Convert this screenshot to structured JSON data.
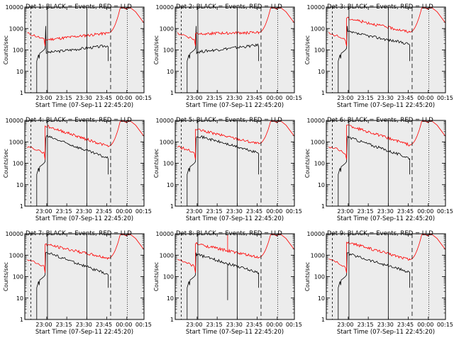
{
  "chart_data": [
    {
      "type": "line",
      "title": "Det 1: BLACK = Events, RED = LLD",
      "xlabel": "Start Time (07-Sep-11 22:45:20)",
      "ylabel": "Counts/sec",
      "ylim": [
        1,
        10000
      ],
      "yscale": "log",
      "x_ticks": [
        "23:00",
        "23:15",
        "23:30",
        "23:45",
        "00:00",
        "00:15"
      ],
      "y_ticks": [
        "1",
        "10",
        "100",
        "1000",
        "10000"
      ],
      "series": [
        {
          "name": "Events",
          "color": "#000000"
        },
        {
          "name": "LLD",
          "color": "#ff0000"
        }
      ]
    },
    {
      "type": "line",
      "title": "Det 2: BLACK = Events, RED = LLD",
      "xlabel": "Start Time (07-Sep-11 22:45:20)",
      "ylabel": "Counts/sec",
      "ylim": [
        1,
        10000
      ],
      "yscale": "log",
      "x_ticks": [
        "23:00",
        "23:15",
        "23:30",
        "23:45",
        "00:00",
        "00:15"
      ],
      "y_ticks": [
        "1",
        "10",
        "100",
        "1000",
        "10000"
      ],
      "series": [
        {
          "name": "Events",
          "color": "#000000"
        },
        {
          "name": "LLD",
          "color": "#ff0000"
        }
      ]
    },
    {
      "type": "line",
      "title": "Det 3: BLACK = Events, RED = LLD",
      "xlabel": "Start Time (07-Sep-11 22:45:20)",
      "ylabel": "Counts/sec",
      "ylim": [
        1,
        10000
      ],
      "yscale": "log",
      "x_ticks": [
        "23:00",
        "23:15",
        "23:30",
        "23:45",
        "00:00",
        "00:15"
      ],
      "y_ticks": [
        "1",
        "10",
        "100",
        "1000",
        "10000"
      ],
      "series": [
        {
          "name": "Events",
          "color": "#000000"
        },
        {
          "name": "LLD",
          "color": "#ff0000"
        }
      ]
    },
    {
      "type": "line",
      "title": "Det 4: BLACK = Events, RED = LLD",
      "xlabel": "Start Time (07-Sep-11 22:45:20)",
      "ylabel": "Counts/sec",
      "ylim": [
        1,
        10000
      ],
      "yscale": "log",
      "x_ticks": [
        "23:00",
        "23:15",
        "23:30",
        "23:45",
        "00:00",
        "00:15"
      ],
      "y_ticks": [
        "1",
        "10",
        "100",
        "1000",
        "10000"
      ],
      "series": [
        {
          "name": "Events",
          "color": "#000000"
        },
        {
          "name": "LLD",
          "color": "#ff0000"
        }
      ]
    },
    {
      "type": "line",
      "title": "Det 5: BLACK = Events, RED = LLD",
      "xlabel": "Start Time (07-Sep-11 22:45:20)",
      "ylabel": "Counts/sec",
      "ylim": [
        1,
        10000
      ],
      "yscale": "log",
      "x_ticks": [
        "23:00",
        "23:15",
        "23:30",
        "23:45",
        "00:00",
        "00:15"
      ],
      "y_ticks": [
        "1",
        "10",
        "100",
        "1000",
        "10000"
      ],
      "series": [
        {
          "name": "Events",
          "color": "#000000"
        },
        {
          "name": "LLD",
          "color": "#ff0000"
        }
      ]
    },
    {
      "type": "line",
      "title": "Det 6: BLACK = Events, RED = LLD",
      "xlabel": "Start Time (07-Sep-11 22:45:20)",
      "ylabel": "Counts/sec",
      "ylim": [
        1,
        10000
      ],
      "yscale": "log",
      "x_ticks": [
        "23:00",
        "23:15",
        "23:30",
        "23:45",
        "00:00",
        "00:15"
      ],
      "y_ticks": [
        "1",
        "10",
        "100",
        "1000",
        "10000"
      ],
      "series": [
        {
          "name": "Events",
          "color": "#000000"
        },
        {
          "name": "LLD",
          "color": "#ff0000"
        }
      ]
    },
    {
      "type": "line",
      "title": "Det 7: BLACK = Events, RED = LLD",
      "xlabel": "Start Time (07-Sep-11 22:45:20)",
      "ylabel": "Counts/sec",
      "ylim": [
        1,
        10000
      ],
      "yscale": "log",
      "x_ticks": [
        "23:00",
        "23:15",
        "23:30",
        "23:45",
        "00:00",
        "00:15"
      ],
      "y_ticks": [
        "1",
        "10",
        "100",
        "1000",
        "10000"
      ],
      "series": [
        {
          "name": "Events",
          "color": "#000000"
        },
        {
          "name": "LLD",
          "color": "#ff0000"
        }
      ]
    },
    {
      "type": "line",
      "title": "Det 8: BLACK = Events, RED = LLD",
      "xlabel": "Start Time (07-Sep-11 22:45:20)",
      "ylabel": "Counts/sec",
      "ylim": [
        1,
        10000
      ],
      "yscale": "log",
      "x_ticks": [
        "23:00",
        "23:15",
        "23:30",
        "23:45",
        "00:00",
        "00:15"
      ],
      "y_ticks": [
        "1",
        "10",
        "100",
        "1000",
        "10000"
      ],
      "series": [
        {
          "name": "Events",
          "color": "#000000"
        },
        {
          "name": "LLD",
          "color": "#ff0000"
        }
      ]
    },
    {
      "type": "line",
      "title": "Det 9: BLACK = Events, RED = LLD",
      "xlabel": "Start Time (07-Sep-11 22:45:20)",
      "ylabel": "Counts/sec",
      "ylim": [
        1,
        10000
      ],
      "yscale": "log",
      "x_ticks": [
        "23:00",
        "23:15",
        "23:30",
        "23:45",
        "00:00",
        "00:15"
      ],
      "y_ticks": [
        "1",
        "10",
        "100",
        "1000",
        "10000"
      ],
      "series": [
        {
          "name": "Events",
          "color": "#000000"
        },
        {
          "name": "LLD",
          "color": "#ff0000"
        }
      ]
    }
  ],
  "colors": {
    "background": "#ffffff",
    "plot_bg": "#ececec",
    "events": "#000000",
    "lld": "#ff0000"
  }
}
